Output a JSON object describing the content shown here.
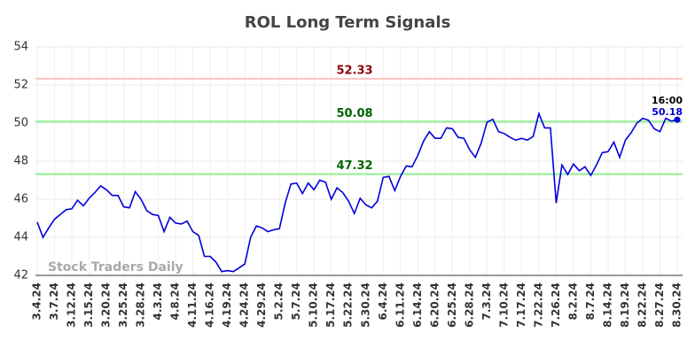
{
  "chart_data": {
    "type": "line",
    "title": "ROL Long Term Signals",
    "categories": [
      "3.4.24",
      null,
      null,
      "3.7.24",
      null,
      null,
      "3.12.24",
      null,
      null,
      "3.15.24",
      null,
      null,
      "3.20.24",
      null,
      null,
      "3.25.24",
      null,
      null,
      "3.28.24",
      null,
      null,
      "4.3.24",
      null,
      null,
      "4.8.24",
      null,
      null,
      "4.11.24",
      null,
      null,
      "4.16.24",
      null,
      null,
      "4.19.24",
      null,
      null,
      "4.24.24",
      null,
      null,
      "4.29.24",
      null,
      null,
      "5.2.24",
      null,
      null,
      "5.7.24",
      null,
      null,
      "5.10.24",
      null,
      null,
      "5.17.24",
      null,
      null,
      "5.22.24",
      null,
      null,
      "5.30.24",
      null,
      null,
      "6.4.24",
      null,
      null,
      "6.11.24",
      null,
      null,
      "6.14.24",
      null,
      null,
      "6.20.24",
      null,
      null,
      "6.25.24",
      null,
      null,
      "6.28.24",
      null,
      null,
      "7.3.24",
      null,
      null,
      "7.10.24",
      null,
      null,
      "7.17.24",
      null,
      null,
      "7.22.24",
      null,
      null,
      "7.26.24",
      null,
      null,
      "8.2.24",
      null,
      null,
      "8.7.24",
      null,
      null,
      "8.14.24",
      null,
      null,
      "8.19.24",
      null,
      null,
      "8.22.24",
      null,
      null,
      "8.27.24",
      null,
      null,
      "8.30.24"
    ],
    "values": [
      44.8,
      44.0,
      44.5,
      44.95,
      45.2,
      45.45,
      45.5,
      45.95,
      45.65,
      46.05,
      46.35,
      46.7,
      46.5,
      46.2,
      46.2,
      45.6,
      45.55,
      46.4,
      46.0,
      45.4,
      45.2,
      45.15,
      44.3,
      45.05,
      44.75,
      44.7,
      44.85,
      44.3,
      44.1,
      43.0,
      43.0,
      42.7,
      42.2,
      42.25,
      42.2,
      42.4,
      42.6,
      44.0,
      44.6,
      44.5,
      44.3,
      44.4,
      44.45,
      45.8,
      46.8,
      46.85,
      46.3,
      46.85,
      46.5,
      47.0,
      46.9,
      46.0,
      46.6,
      46.35,
      45.9,
      45.25,
      46.05,
      45.7,
      45.55,
      45.9,
      47.15,
      47.2,
      46.45,
      47.2,
      47.75,
      47.7,
      48.3,
      49.05,
      49.55,
      49.2,
      49.2,
      49.75,
      49.7,
      49.25,
      49.2,
      48.6,
      48.2,
      48.95,
      50.05,
      50.2,
      49.55,
      49.45,
      49.25,
      49.1,
      49.2,
      49.1,
      49.3,
      50.5,
      49.75,
      49.75,
      45.8,
      47.8,
      47.3,
      47.85,
      47.5,
      47.7,
      47.25,
      47.8,
      48.45,
      48.5,
      49.0,
      48.2,
      49.1,
      49.5,
      50.0,
      50.25,
      50.15,
      49.7,
      49.55,
      50.25,
      50.1,
      50.18
    ],
    "color": "#0000dd",
    "ylim": [
      42,
      54
    ],
    "yticks": [
      42,
      44,
      46,
      48,
      50,
      52,
      54
    ],
    "grid": true,
    "levels": [
      {
        "value": 52.33,
        "color": "#ffc0c0",
        "label_color": "#8b0000"
      },
      {
        "value": 50.08,
        "color": "#90ee90",
        "label_color": "#006400"
      },
      {
        "value": 47.32,
        "color": "#90ee90",
        "label_color": "#006400"
      }
    ],
    "last_time": "16:00",
    "watermark": "Stock Traders Daily"
  }
}
